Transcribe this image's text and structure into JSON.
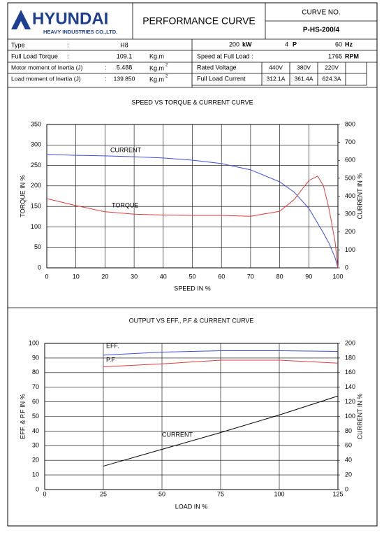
{
  "header": {
    "logo": "HYUNDAI",
    "logo_sub": "HEAVY INDUSTRIES CO.,LTD.",
    "title": "PERFORMANCE CURVE",
    "curve_no_label": "CURVE NO.",
    "curve_no": "P-HS-200/4"
  },
  "specs": {
    "left": [
      {
        "label": "Type",
        "sep": ":",
        "value": "H8"
      },
      {
        "label": "Full Load Torque",
        "sep": ":",
        "value": "109.1",
        "unit": "Kg.m"
      },
      {
        "label": "Motor moment of Inertia (J)",
        "sep": ":",
        "value": "5.488",
        "unit": "Kg.m",
        "unit_power": "2"
      },
      {
        "label": "Load moment of Inertia (J)",
        "sep": ":",
        "value": "139.850",
        "unit": "Kg.m",
        "unit_power": "2"
      }
    ],
    "output": {
      "power": "200",
      "power_unit": "kW",
      "poles": "4",
      "poles_unit": "P",
      "frequency": "60",
      "frequency_unit": "Hz"
    },
    "speed": {
      "label": "Speed at Full Load :",
      "value": "1765",
      "unit": "RPM"
    },
    "voltage": {
      "label": "Rated Voltage",
      "values": [
        "440V",
        "380V",
        "220V"
      ]
    },
    "current": {
      "label": "Full Load Current",
      "values": [
        "312.1A",
        "361.4A",
        "624.3A"
      ]
    }
  },
  "chart_data": [
    {
      "type": "line",
      "title": "SPEED VS TORQUE & CURRENT CURVE",
      "x_label": "SPEED IN %",
      "y_label": "TORQUE IN %",
      "y2_label": "CURRENT IN %",
      "x": [
        0,
        10,
        20,
        30,
        40,
        50,
        60,
        70,
        80,
        85,
        90,
        93,
        95,
        97,
        99,
        100
      ],
      "series": [
        {
          "name": "CURRENT",
          "color": "#3b4fd8",
          "axis": "y2",
          "values": [
            633,
            628,
            625,
            620,
            613,
            601,
            582,
            547,
            480,
            422,
            332,
            250,
            195,
            135,
            58,
            0
          ]
        },
        {
          "name": "TORQUE",
          "color": "#e03a3a",
          "values": [
            169,
            152,
            137,
            131,
            129,
            128,
            128,
            126,
            138,
            167,
            213,
            224,
            201,
            142,
            65,
            0
          ]
        }
      ],
      "xlim": [
        0,
        100
      ],
      "xticks": [
        0,
        10,
        20,
        30,
        40,
        50,
        60,
        70,
        80,
        90,
        100
      ],
      "ylim": [
        0,
        350
      ],
      "yticks": [
        0,
        50,
        100,
        150,
        200,
        250,
        300,
        350
      ],
      "y2lim": [
        0,
        800
      ],
      "y2ticks": [
        0,
        100,
        200,
        300,
        400,
        500,
        600,
        700,
        800
      ],
      "grid": true
    },
    {
      "type": "line",
      "title": "OUTPUT VS EFF., P.F & CURRENT CURVE",
      "x_label": "LOAD IN %",
      "y_label": "EFF. & P.F IN %",
      "y2_label": "CURRENT IN %",
      "x": [
        25,
        50,
        75,
        100,
        125
      ],
      "series": [
        {
          "name": "EFF.",
          "color": "#3b4fd8",
          "values": [
            92,
            94,
            95,
            95,
            94.5
          ]
        },
        {
          "name": "P.F",
          "color": "#e03a3a",
          "values": [
            84,
            86,
            88.5,
            88.5,
            86.5
          ]
        },
        {
          "name": "CURRENT",
          "color": "#000000",
          "axis": "y2",
          "values": [
            32,
            55,
            78,
            102,
            128
          ]
        }
      ],
      "xlim": [
        0,
        125
      ],
      "xticks": [
        0,
        25,
        50,
        75,
        100,
        125
      ],
      "ylim": [
        0,
        100
      ],
      "yticks": [
        0,
        10,
        20,
        30,
        40,
        50,
        60,
        70,
        80,
        90,
        100
      ],
      "y2lim": [
        0,
        200
      ],
      "y2ticks": [
        0,
        20,
        40,
        60,
        80,
        100,
        120,
        140,
        160,
        180,
        200
      ],
      "grid": true
    }
  ]
}
